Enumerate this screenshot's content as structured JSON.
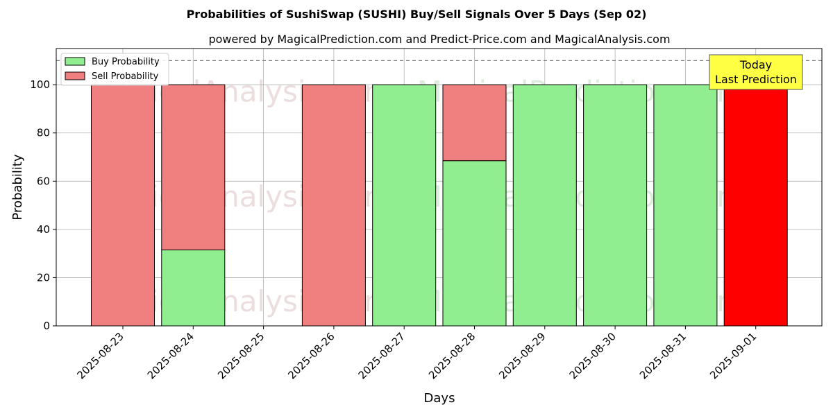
{
  "chart_data": {
    "type": "bar",
    "stacked": true,
    "title": "Probabilities of SushiSwap (SUSHI) Buy/Sell Signals Over 5 Days (Sep 02)",
    "subtitle": "powered by MagicalPrediction.com and Predict-Price.com and MagicalAnalysis.com",
    "xlabel": "Days",
    "ylabel": "Probability",
    "ylim": [
      0,
      115
    ],
    "yticks": [
      0,
      20,
      40,
      60,
      80,
      100
    ],
    "grid": true,
    "legend_position": "top-left",
    "categories": [
      "2025-08-23",
      "2025-08-24",
      "2025-08-25",
      "2025-08-26",
      "2025-08-27",
      "2025-08-28",
      "2025-08-29",
      "2025-08-30",
      "2025-08-31",
      "2025-09-01"
    ],
    "series": [
      {
        "name": "Buy Probability",
        "color": "#90ee90",
        "values": [
          0,
          31.5,
          0,
          0,
          100,
          68.5,
          100,
          100,
          100,
          0
        ]
      },
      {
        "name": "Sell Probability",
        "color": "#f08080",
        "values": [
          100,
          68.5,
          0,
          100,
          0,
          31.5,
          0,
          0,
          0,
          100
        ]
      }
    ],
    "highlight": {
      "index": 9,
      "color": "#ff0000"
    },
    "reference_line": {
      "value": 110,
      "style": "dashed"
    },
    "annotation": {
      "line1": "Today",
      "line2": "Last Prediction",
      "background": "#ffff44"
    },
    "watermarks": [
      "MagicalAnalysis.com",
      "MagicalPrediction.com"
    ]
  }
}
